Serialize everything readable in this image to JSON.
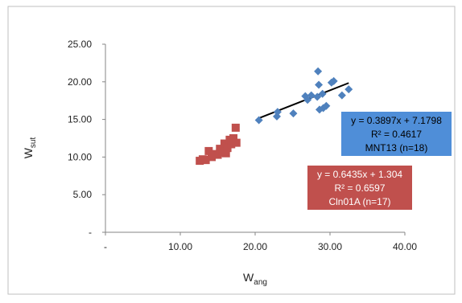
{
  "chart_data": {
    "type": "scatter",
    "title": "",
    "xlabel": {
      "main": "W",
      "sub": "ang"
    },
    "ylabel": {
      "main": "W",
      "sub": "sut"
    },
    "xlim": [
      0,
      40
    ],
    "ylim": [
      0,
      25
    ],
    "x_ticks": [
      {
        "value": 0,
        "label": "-"
      },
      {
        "value": 10,
        "label": "10.00"
      },
      {
        "value": 20,
        "label": "20.00"
      },
      {
        "value": 30,
        "label": "30.00"
      },
      {
        "value": 40,
        "label": "40.00"
      }
    ],
    "y_ticks": [
      {
        "value": 0,
        "label": "-"
      },
      {
        "value": 5,
        "label": "5.00"
      },
      {
        "value": 10,
        "label": "10.00"
      },
      {
        "value": 15,
        "label": "15.00"
      },
      {
        "value": 20,
        "label": "20.00"
      },
      {
        "value": 25,
        "label": "25.00"
      }
    ],
    "grid": {
      "horizontal": false,
      "vertical": false
    },
    "legend": "none",
    "series": [
      {
        "name": "MNT13",
        "marker": "diamond",
        "color": "#4f81bd",
        "trendline_color": "#000000",
        "points": [
          [
            20.5,
            14.9
          ],
          [
            22.9,
            15.4
          ],
          [
            23.0,
            16.0
          ],
          [
            25.1,
            15.8
          ],
          [
            26.7,
            18.1
          ],
          [
            27.0,
            17.6
          ],
          [
            27.5,
            18.2
          ],
          [
            28.3,
            18.0
          ],
          [
            28.4,
            21.4
          ],
          [
            28.5,
            19.6
          ],
          [
            28.6,
            16.3
          ],
          [
            29.0,
            18.4
          ],
          [
            29.1,
            16.5
          ],
          [
            29.5,
            16.8
          ],
          [
            30.2,
            19.9
          ],
          [
            30.5,
            20.1
          ],
          [
            31.6,
            18.2
          ],
          [
            32.5,
            19.0
          ]
        ],
        "trendline": {
          "slope": 0.3897,
          "intercept": 7.1798,
          "x_range": [
            20.5,
            32.5
          ]
        },
        "annotation": {
          "lines": [
            "y = 0.3897x + 7.1798",
            "R² = 0.4617",
            "MNT13 (n=18)"
          ],
          "background": "#4f8ed8",
          "text_color": "#000000"
        }
      },
      {
        "name": "Cln01A",
        "marker": "square",
        "color": "#c0504d",
        "trendline_color": "#ff0000",
        "points": [
          [
            12.6,
            9.5
          ],
          [
            13.0,
            9.7
          ],
          [
            13.4,
            9.6
          ],
          [
            13.8,
            10.8
          ],
          [
            14.2,
            10.0
          ],
          [
            14.6,
            10.4
          ],
          [
            15.0,
            10.3
          ],
          [
            15.3,
            11.1
          ],
          [
            15.6,
            10.6
          ],
          [
            15.9,
            11.8
          ],
          [
            16.1,
            10.5
          ],
          [
            16.3,
            11.2
          ],
          [
            16.6,
            12.3
          ],
          [
            16.8,
            11.7
          ],
          [
            17.1,
            12.5
          ],
          [
            17.4,
            13.9
          ],
          [
            17.5,
            11.9
          ]
        ],
        "trendline": {
          "slope": 0.6435,
          "intercept": 1.304,
          "x_range": [
            12.6,
            16.9
          ]
        },
        "annotation": {
          "lines": [
            "y = 0.6435x + 1.304",
            "R² = 0.6597",
            "Cln01A (n=17)"
          ],
          "background": "#c0504d",
          "text_color": "#ffffff"
        }
      }
    ]
  }
}
